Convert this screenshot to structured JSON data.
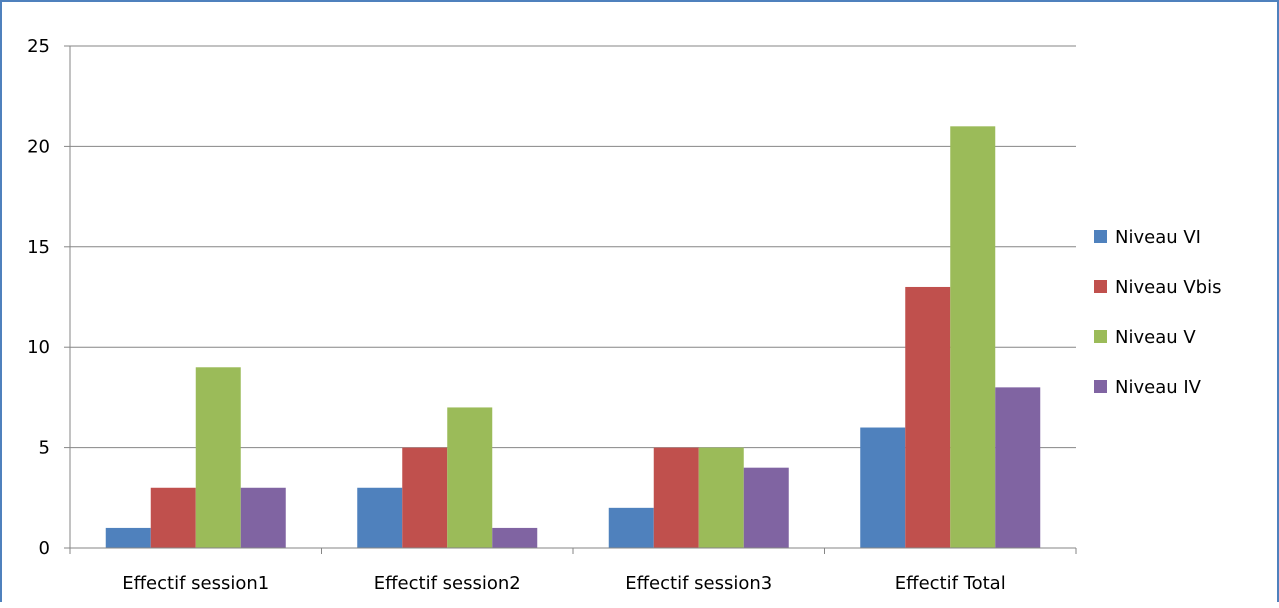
{
  "chart_data": {
    "type": "bar",
    "title": "",
    "xlabel": "",
    "ylabel": "",
    "categories": [
      "Effectif session1",
      "Effectif session2",
      "Effectif session3",
      "Effectif Total"
    ],
    "series": [
      {
        "name": "Niveau VI",
        "values": [
          1,
          3,
          2,
          6
        ],
        "color": "#4f81bd"
      },
      {
        "name": "Niveau Vbis",
        "values": [
          3,
          5,
          5,
          13
        ],
        "color": "#c0504d"
      },
      {
        "name": "Niveau V",
        "values": [
          9,
          7,
          5,
          21
        ],
        "color": "#9bbb59"
      },
      {
        "name": "Niveau IV",
        "values": [
          3,
          1,
          4,
          8
        ],
        "color": "#8064a2"
      }
    ],
    "ylim": [
      0,
      25
    ],
    "yticks": [
      "0",
      "5",
      "10",
      "15",
      "20",
      "25"
    ],
    "grid": true,
    "legend_position": "right"
  }
}
